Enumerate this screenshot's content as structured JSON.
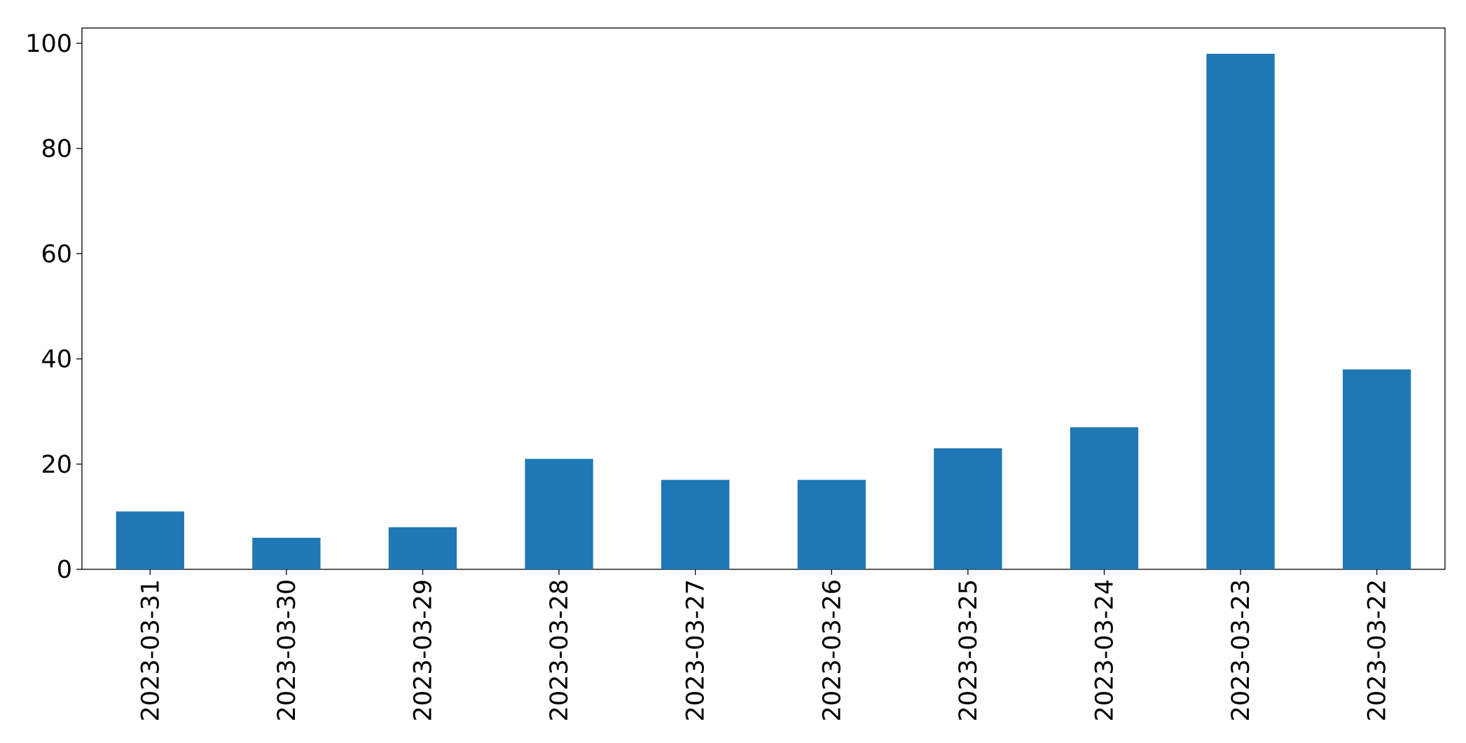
{
  "chart_data": {
    "type": "bar",
    "categories": [
      "2023-03-31",
      "2023-03-30",
      "2023-03-29",
      "2023-03-28",
      "2023-03-27",
      "2023-03-26",
      "2023-03-25",
      "2023-03-24",
      "2023-03-23",
      "2023-03-22"
    ],
    "values": [
      11,
      6,
      8,
      21,
      17,
      17,
      23,
      27,
      98,
      38
    ],
    "color": "#1f77b4",
    "ylim": [
      0,
      102.9
    ],
    "yticks": [
      0,
      20,
      40,
      60,
      80,
      100
    ],
    "grid": false
  }
}
